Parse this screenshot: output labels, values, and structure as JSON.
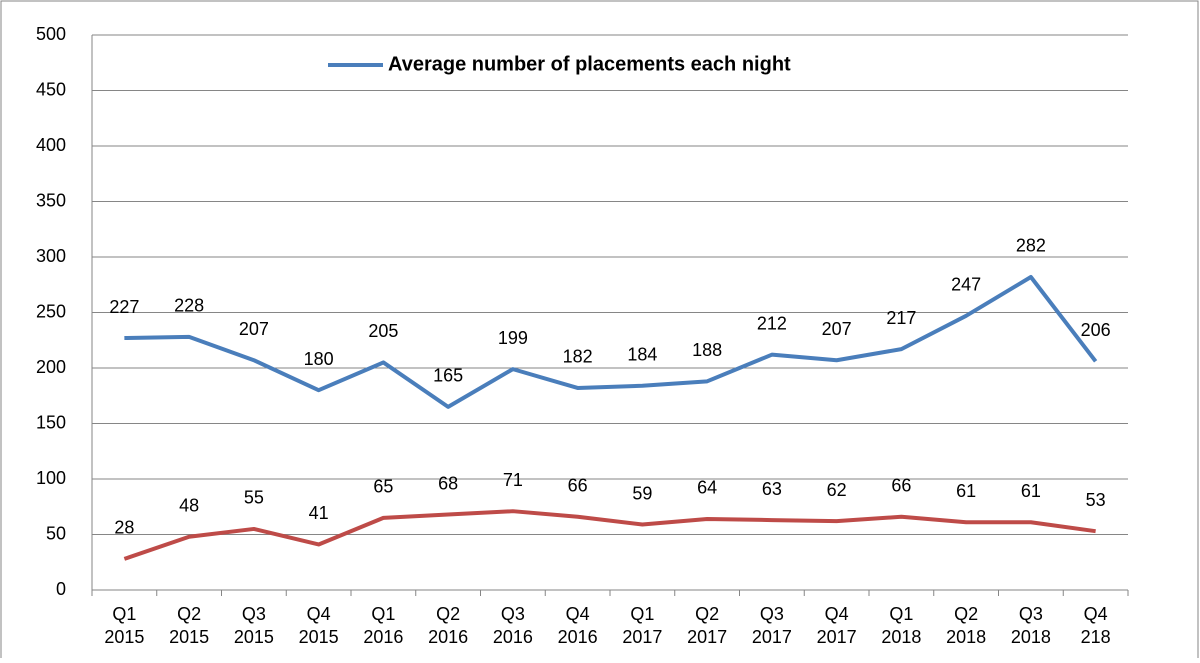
{
  "chart_data": {
    "type": "line",
    "categories": [
      "Q1 2015",
      "Q2 2015",
      "Q3 2015",
      "Q4 2015",
      "Q1 2016",
      "Q2 2016",
      "Q3 2016",
      "Q4 2016",
      "Q1 2017",
      "Q2 2017",
      "Q3 2017",
      "Q4 2017",
      "Q1 2018",
      "Q2 2018",
      "Q3 2018",
      "Q4 218"
    ],
    "series": [
      {
        "name": "Average number of placements each night",
        "color": "#4a7ebb",
        "values": [
          227,
          228,
          207,
          180,
          205,
          165,
          199,
          182,
          184,
          188,
          212,
          207,
          217,
          247,
          282,
          206
        ]
      },
      {
        "color": "#be4b48",
        "values": [
          28,
          48,
          55,
          41,
          65,
          68,
          71,
          66,
          59,
          64,
          63,
          62,
          66,
          61,
          61,
          53
        ]
      }
    ],
    "ylim": [
      0,
      500
    ],
    "yticks": [
      0,
      50,
      100,
      150,
      200,
      250,
      300,
      350,
      400,
      450,
      500
    ],
    "grid": true
  }
}
